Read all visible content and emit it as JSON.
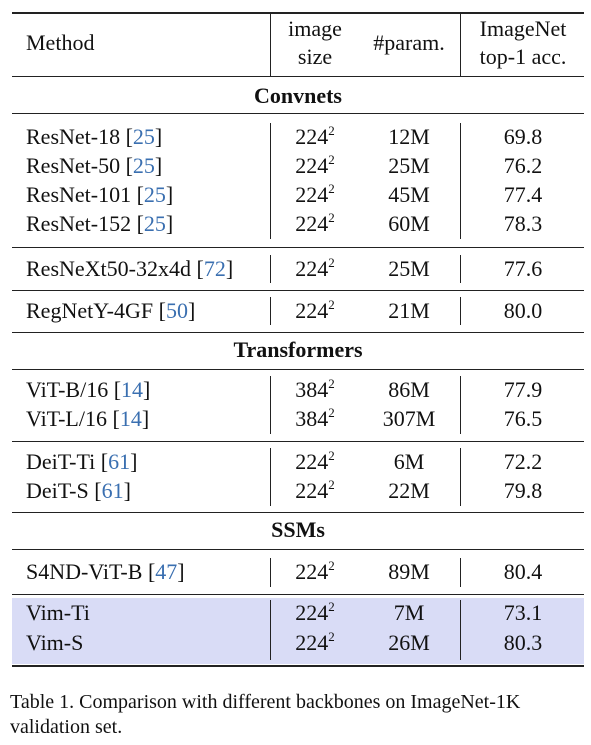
{
  "header": {
    "method": "Method",
    "image_size_l1": "image",
    "image_size_l2": "size",
    "params": "#param.",
    "acc_l1": "ImageNet",
    "acc_l2": "top-1 acc."
  },
  "sections": {
    "convnets": "Convnets",
    "transformers": "Transformers",
    "ssms": "SSMs"
  },
  "rows": [
    {
      "method": "ResNet-18",
      "cite": "25",
      "size": "224",
      "exp": "2",
      "params": "12M",
      "acc": "69.8"
    },
    {
      "method": "ResNet-50",
      "cite": "25",
      "size": "224",
      "exp": "2",
      "params": "25M",
      "acc": "76.2"
    },
    {
      "method": "ResNet-101",
      "cite": "25",
      "size": "224",
      "exp": "2",
      "params": "45M",
      "acc": "77.4"
    },
    {
      "method": "ResNet-152",
      "cite": "25",
      "size": "224",
      "exp": "2",
      "params": "60M",
      "acc": "78.3"
    },
    {
      "method": "ResNeXt50-32x4d",
      "cite": "72",
      "size": "224",
      "exp": "2",
      "params": "25M",
      "acc": "77.6"
    },
    {
      "method": "RegNetY-4GF",
      "cite": "50",
      "size": "224",
      "exp": "2",
      "params": "21M",
      "acc": "80.0"
    },
    {
      "method": "ViT-B/16",
      "cite": "14",
      "size": "384",
      "exp": "2",
      "params": "86M",
      "acc": "77.9"
    },
    {
      "method": "ViT-L/16",
      "cite": "14",
      "size": "384",
      "exp": "2",
      "params": "307M",
      "acc": "76.5"
    },
    {
      "method": "DeiT-Ti",
      "cite": "61",
      "size": "224",
      "exp": "2",
      "params": "6M",
      "acc": "72.2"
    },
    {
      "method": "DeiT-S",
      "cite": "61",
      "size": "224",
      "exp": "2",
      "params": "22M",
      "acc": "79.8"
    },
    {
      "method": "S4ND-ViT-B",
      "cite": "47",
      "size": "224",
      "exp": "2",
      "params": "89M",
      "acc": "80.4"
    },
    {
      "method": "Vim-Ti",
      "cite": "",
      "size": "224",
      "exp": "2",
      "params": "7M",
      "acc": "73.1"
    },
    {
      "method": "Vim-S",
      "cite": "",
      "size": "224",
      "exp": "2",
      "params": "26M",
      "acc": "80.3"
    }
  ],
  "highlight_color": "#d9dcf6",
  "citation_color": "#3a6fb0",
  "caption": "Table 1.  Comparison with different backbones on ImageNet-1K validation set."
}
